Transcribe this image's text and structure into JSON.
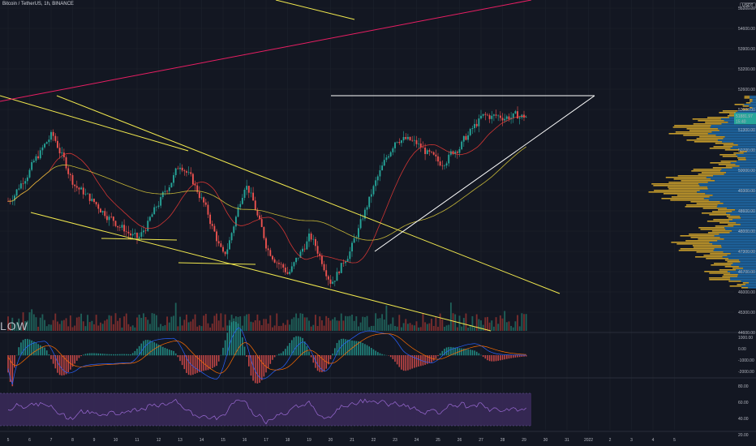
{
  "header": {
    "symbol_title": "Bitcoin / TetherUS, 1h, BINANCE",
    "currency_badge": "USDT",
    "volume_label": "LOW"
  },
  "colors": {
    "background": "#131722",
    "grid": "#1e222d",
    "candle_up": "#26a69a",
    "candle_down": "#ef5350",
    "trendline": "#f2e94e",
    "white_line": "#ffffff",
    "magenta_line": "#e91e63",
    "ma_red": "#e53935",
    "ma_yellow": "#d9c83a",
    "vp_blue": "#1e6aa8",
    "vp_gold": "#c49a2b",
    "rsi_band": "#3b2a5a",
    "rsi_line": "#9c6bd6",
    "price_tag": "#26a69a"
  },
  "chart_data": {
    "type": "candlestick",
    "x_ticks": [
      "5",
      "6",
      "7",
      "8",
      "9",
      "10",
      "11",
      "12",
      "13",
      "14",
      "15",
      "16",
      "17",
      "18",
      "19",
      "20",
      "21",
      "22",
      "23",
      "24",
      "25",
      "26",
      "27",
      "28",
      "29",
      "30",
      "31",
      "2022",
      "2",
      "3",
      "4",
      "5"
    ],
    "price_axis": [
      "55300.00",
      "54600.00",
      "53900.00",
      "53200.00",
      "52600.00",
      "52000.00",
      "51300.00",
      "50700.00",
      "50000.00",
      "49300.00",
      "48600.00",
      "48000.00",
      "47300.00",
      "46700.00",
      "46000.00",
      "45300.00",
      "44600.00"
    ],
    "price_tag": {
      "value": "51881.97",
      "sub": "15:40"
    },
    "ylim": [
      44300,
      55800
    ],
    "macd_axis": [
      "1000.00",
      "0.00",
      "-1000.00",
      "-2000.00"
    ],
    "rsi_axis": [
      "80.00",
      "60.00",
      "40.00",
      "20.00"
    ],
    "key_prices": [
      {
        "x": 0,
        "price": 48900
      },
      {
        "x": 2,
        "price": 51300
      },
      {
        "x": 3,
        "price": 49500
      },
      {
        "x": 5,
        "price": 48100
      },
      {
        "x": 6,
        "price": 47500
      },
      {
        "x": 8,
        "price": 50300
      },
      {
        "x": 9,
        "price": 48900
      },
      {
        "x": 10,
        "price": 46800
      },
      {
        "x": 11,
        "price": 49700
      },
      {
        "x": 12,
        "price": 47200
      },
      {
        "x": 13,
        "price": 46300
      },
      {
        "x": 14,
        "price": 47700
      },
      {
        "x": 15,
        "price": 46000
      },
      {
        "x": 16,
        "price": 47400
      },
      {
        "x": 17,
        "price": 49500
      },
      {
        "x": 18,
        "price": 51200
      },
      {
        "x": 19,
        "price": 50900
      },
      {
        "x": 20,
        "price": 50200
      },
      {
        "x": 21,
        "price": 50900
      },
      {
        "x": 22,
        "price": 51900
      }
    ]
  }
}
